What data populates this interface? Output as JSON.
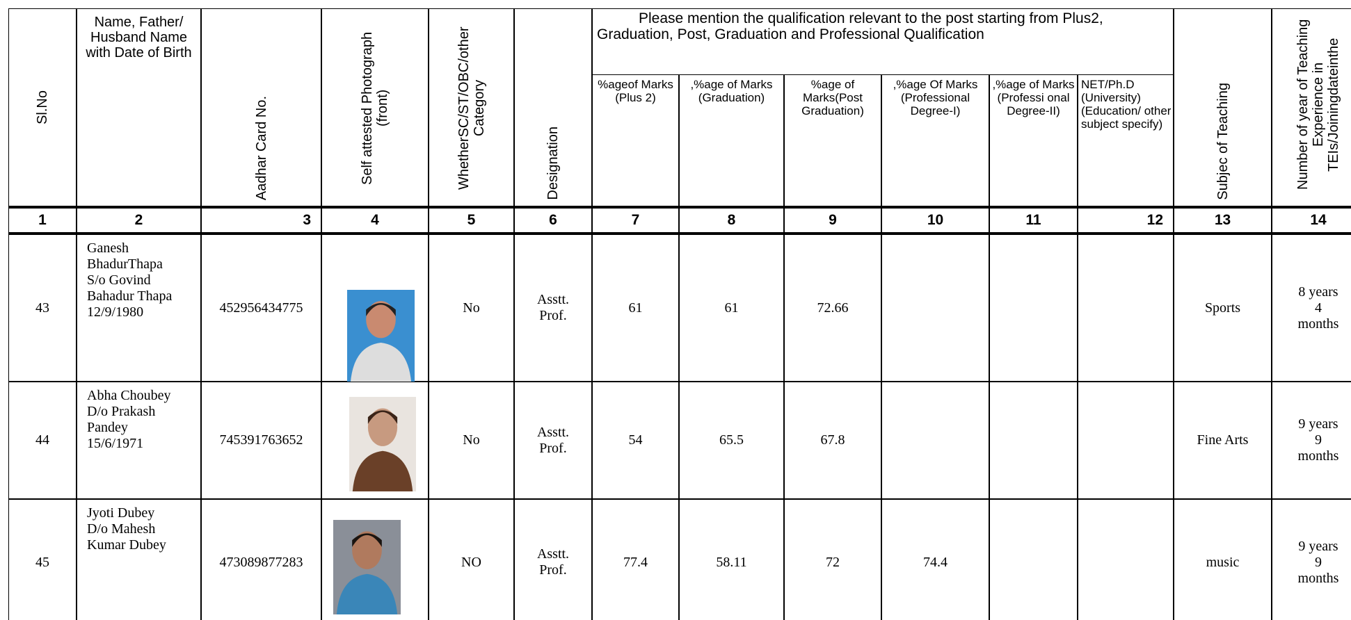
{
  "header": {
    "columns": [
      "Sl.No",
      "Name, Father/ Husband Name with Date of Birth",
      "Aadhar Card No.",
      "Self attested Photograph (front)",
      "WhetherSC/ST/OBC/other Category",
      "Designation",
      "%ageof Marks (Plus 2)",
      ",%age of Marks (Graduation)",
      "%age of Marks(Post Graduation)",
      ",%age Of Marks (Professional Degree-I)",
      ",%age of Marks (Professi onal Degree-II)",
      "NET/Ph.D (University) (Education/ other subject specify)",
      "Subjec of Teaching",
      "Number of year of Teaching Experience in TEIs/Joiningdateinthe"
    ],
    "group_title": "Please mention the qualification relevant to the post starting from Plus2, Graduation, Post, Graduation and Professional Qualification",
    "column_numbers": [
      1,
      2,
      3,
      4,
      5,
      6,
      7,
      8,
      9,
      10,
      11,
      12,
      13,
      14
    ]
  },
  "table": {
    "rows": [
      {
        "sl": 43,
        "name": [
          "Ganesh",
          "BhadurThapa",
          "S/o Govind",
          "Bahadur Thapa",
          "12/9/1980"
        ],
        "aadhar": "452956434775",
        "category": "No",
        "designation": [
          "Asstt.",
          "Prof."
        ],
        "plus2": 61,
        "graduation": 61,
        "post_graduation": 72.66,
        "prof1": null,
        "prof2": null,
        "net": null,
        "subject": "Sports",
        "experience": [
          "8 years",
          "4",
          "months"
        ]
      },
      {
        "sl": 44,
        "name": [
          "Abha Choubey",
          "D/o Prakash",
          "Pandey",
          "15/6/1971"
        ],
        "aadhar": "745391763652",
        "category": "No",
        "designation": [
          "Asstt.",
          "Prof."
        ],
        "plus2": 54,
        "graduation": 65.5,
        "post_graduation": 67.8,
        "prof1": null,
        "prof2": null,
        "net": null,
        "subject": "Fine Arts",
        "experience": [
          "9 years",
          "9",
          "months"
        ]
      },
      {
        "sl": 45,
        "name": [
          "Jyoti Dubey",
          "D/o Mahesh",
          "Kumar Dubey"
        ],
        "aadhar": "473089877283",
        "category": "NO",
        "designation": [
          "Asstt.",
          "Prof."
        ],
        "plus2": 77.4,
        "graduation": 58.11,
        "post_graduation": 72,
        "prof1": 74.4,
        "prof2": null,
        "net": null,
        "subject": "music",
        "experience": [
          "9 years",
          "9",
          "months"
        ]
      }
    ]
  }
}
